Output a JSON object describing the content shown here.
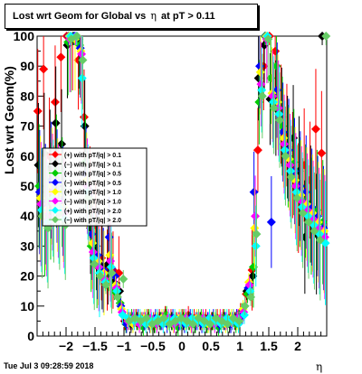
{
  "chart_data": {
    "type": "scatter",
    "title": "Lost wrt Geom for Global vs   η at pT > 0.11",
    "title_parts": [
      "Lost wrt Geom for Global vs",
      "η",
      "at pT > 0.11"
    ],
    "xlabel": "η",
    "ylabel": "Lost wrt Geom(%)",
    "xlim": [
      -2.5,
      2.5
    ],
    "ylim": [
      0,
      100
    ],
    "xticks": [
      -2,
      -1.5,
      -1,
      -0.5,
      0,
      0.5,
      1,
      1.5,
      2
    ],
    "xtick_labels": [
      "−2",
      "−1.5",
      "−1",
      "−0.5",
      "0",
      "0.5",
      "1",
      "1.5",
      "2"
    ],
    "yticks": [
      0,
      10,
      20,
      30,
      40,
      50,
      60,
      70,
      80,
      90,
      100
    ],
    "ytick_labels": [
      "0",
      "10",
      "20",
      "30",
      "40",
      "50",
      "60",
      "70",
      "80",
      "90",
      "100"
    ],
    "legend_position": "center-left",
    "series": [
      {
        "name": "(+) with pT/|q| > 0.1",
        "color": "#ff0000",
        "x": [
          -2.45,
          -2.35,
          -2.25,
          -2.15,
          -2.05,
          -1.95,
          -1.85,
          -1.75,
          -1.65,
          -1.55,
          -1.45,
          -1.35,
          -1.25,
          -1.15,
          -1.05,
          -0.95,
          -0.85,
          -0.75,
          -0.65,
          -0.55,
          -0.45,
          -0.35,
          -0.25,
          -0.15,
          -0.05,
          0.05,
          0.15,
          0.25,
          0.35,
          0.45,
          0.55,
          0.65,
          0.75,
          0.85,
          0.95,
          1.05,
          1.15,
          1.25,
          1.35,
          1.45,
          1.55,
          1.65,
          1.75,
          1.85,
          1.95,
          2.05,
          2.15,
          2.25,
          2.35,
          2.45
        ],
        "y": [
          75,
          89,
          60,
          78,
          93,
          100,
          99,
          92,
          73,
          48,
          37,
          26,
          22,
          22,
          21,
          5,
          5,
          6,
          5,
          6,
          5,
          6,
          7,
          6,
          5,
          6,
          7,
          6,
          5,
          6,
          5,
          6,
          6,
          6,
          5,
          8,
          14,
          22,
          62,
          90,
          100,
          95,
          74,
          67,
          57,
          46,
          57,
          52,
          69,
          61
        ]
      },
      {
        "name": "(−) with pT/|q| > 0.1",
        "color": "#000000",
        "x": [
          -2.45,
          -2.35,
          -2.25,
          -2.15,
          -2.05,
          -1.95,
          -1.85,
          -1.75,
          -1.65,
          -1.55,
          -1.45,
          -1.35,
          -1.25,
          -1.15,
          -1.05,
          -0.95,
          -0.85,
          -0.75,
          -0.65,
          -0.55,
          -0.45,
          -0.35,
          -0.25,
          -0.15,
          -0.05,
          0.05,
          0.15,
          0.25,
          0.35,
          0.45,
          0.55,
          0.65,
          0.75,
          0.85,
          0.95,
          1.05,
          1.15,
          1.25,
          1.35,
          1.45,
          1.55,
          1.65,
          1.75,
          1.85,
          1.95,
          2.05,
          2.15,
          2.25,
          2.35,
          2.45
        ],
        "y": [
          57,
          61,
          56,
          71,
          64,
          97,
          100,
          99,
          70,
          36,
          30,
          23,
          24,
          18,
          15,
          5,
          4,
          5,
          4,
          5,
          4,
          5,
          6,
          5,
          4,
          5,
          5,
          4,
          5,
          4,
          5,
          4,
          5,
          4,
          5,
          7,
          15,
          20,
          86,
          97,
          79,
          76,
          73,
          63,
          66,
          55,
          33,
          44,
          34,
          100
        ]
      },
      {
        "name": "(+) with pT/|q| > 0.5",
        "color": "#00cc00",
        "x": [
          -2.45,
          -2.35,
          -2.25,
          -2.15,
          -2.05,
          -1.95,
          -1.85,
          -1.75,
          -1.65,
          -1.55,
          -1.45,
          -1.35,
          -1.25,
          -1.15,
          -1.05,
          -0.95,
          -0.85,
          -0.75,
          -0.65,
          -0.55,
          -0.45,
          -0.35,
          -0.25,
          -0.15,
          -0.05,
          0.05,
          0.15,
          0.25,
          0.35,
          0.45,
          0.55,
          0.65,
          0.75,
          0.85,
          0.95,
          1.05,
          1.15,
          1.25,
          1.35,
          1.45,
          1.55,
          1.65,
          1.75,
          1.85,
          1.95,
          2.05,
          2.15,
          2.25,
          2.35,
          2.45
        ],
        "y": [
          50,
          40,
          45,
          55,
          48,
          98,
          100,
          97,
          58,
          30,
          24,
          20,
          18,
          15,
          11,
          4,
          6,
          5,
          3,
          6,
          4,
          5,
          7,
          5,
          3,
          6,
          5,
          4,
          6,
          4,
          5,
          3,
          6,
          5,
          4,
          8,
          14,
          23,
          78,
          100,
          86,
          90,
          70,
          60,
          58,
          48,
          45,
          40,
          42,
          38
        ]
      },
      {
        "name": "(−) with pT/|q| > 0.5",
        "color": "#0000ff",
        "x": [
          -2.45,
          -2.35,
          -2.25,
          -2.15,
          -2.05,
          -1.95,
          -1.85,
          -1.75,
          -1.65,
          -1.55,
          -1.45,
          -1.35,
          -1.25,
          -1.15,
          -1.05,
          -0.95,
          -0.85,
          -0.75,
          -0.65,
          -0.55,
          -0.45,
          -0.35,
          -0.25,
          -0.15,
          -0.05,
          0.05,
          0.15,
          0.25,
          0.35,
          0.45,
          0.55,
          0.65,
          0.75,
          0.85,
          0.95,
          1.05,
          1.15,
          1.25,
          1.35,
          1.45,
          1.55,
          1.65,
          1.75,
          1.85,
          1.95,
          2.05,
          2.15,
          2.25,
          2.35,
          2.45
        ],
        "y": [
          48,
          44,
          52,
          50,
          45,
          100,
          100,
          96,
          54,
          34,
          27,
          22,
          33,
          20,
          10,
          4,
          5,
          6,
          5,
          4,
          6,
          5,
          4,
          6,
          5,
          4,
          6,
          5,
          4,
          5,
          6,
          4,
          5,
          4,
          6,
          7,
          16,
          48,
          90,
          100,
          38,
          82,
          68,
          62,
          55,
          50,
          48,
          43,
          40,
          36
        ]
      },
      {
        "name": "(+) with pT/|q| > 1.0",
        "color": "#ffff00",
        "x": [
          -2.45,
          -2.35,
          -2.25,
          -2.15,
          -2.05,
          -1.95,
          -1.85,
          -1.75,
          -1.65,
          -1.55,
          -1.45,
          -1.35,
          -1.25,
          -1.15,
          -1.05,
          -0.95,
          -0.85,
          -0.75,
          -0.65,
          -0.55,
          -0.45,
          -0.35,
          -0.25,
          -0.15,
          -0.05,
          0.05,
          0.15,
          0.25,
          0.35,
          0.45,
          0.55,
          0.65,
          0.75,
          0.85,
          0.95,
          1.05,
          1.15,
          1.25,
          1.35,
          1.45,
          1.55,
          1.65,
          1.75,
          1.85,
          1.95,
          2.05,
          2.15,
          2.25,
          2.35,
          2.45
        ],
        "y": [
          46,
          42,
          50,
          47,
          43,
          100,
          99,
          95,
          52,
          31,
          25,
          21,
          27,
          17,
          9,
          6,
          4,
          5,
          6,
          4,
          5,
          6,
          5,
          4,
          6,
          5,
          4,
          6,
          5,
          4,
          5,
          6,
          4,
          6,
          5,
          9,
          18,
          36,
          88,
          100,
          81,
          78,
          66,
          59,
          52,
          47,
          44,
          41,
          38,
          35
        ]
      },
      {
        "name": "(−) with pT/|q| > 1.0",
        "color": "#ff00ff",
        "x": [
          -2.45,
          -2.35,
          -2.25,
          -2.15,
          -2.05,
          -1.95,
          -1.85,
          -1.75,
          -1.65,
          -1.55,
          -1.45,
          -1.35,
          -1.25,
          -1.15,
          -1.05,
          -0.95,
          -0.85,
          -0.75,
          -0.65,
          -0.55,
          -0.45,
          -0.35,
          -0.25,
          -0.15,
          -0.05,
          0.05,
          0.15,
          0.25,
          0.35,
          0.45,
          0.55,
          0.65,
          0.75,
          0.85,
          0.95,
          1.05,
          1.15,
          1.25,
          1.35,
          1.45,
          1.55,
          1.65,
          1.75,
          1.85,
          1.95,
          2.05,
          2.15,
          2.25,
          2.35,
          2.45
        ],
        "y": [
          44,
          40,
          48,
          45,
          41,
          99,
          100,
          94,
          50,
          28,
          23,
          19,
          25,
          16,
          8,
          5,
          6,
          4,
          5,
          6,
          4,
          5,
          6,
          4,
          5,
          6,
          4,
          5,
          6,
          5,
          4,
          6,
          5,
          5,
          6,
          8,
          17,
          40,
          84,
          99,
          80,
          76,
          64,
          57,
          50,
          45,
          42,
          39,
          36,
          33
        ]
      },
      {
        "name": "(+) with pT/|q| > 2.0",
        "color": "#00ffff",
        "x": [
          -2.45,
          -2.35,
          -2.25,
          -2.15,
          -2.05,
          -1.95,
          -1.85,
          -1.75,
          -1.65,
          -1.55,
          -1.45,
          -1.35,
          -1.25,
          -1.15,
          -1.05,
          -0.95,
          -0.85,
          -0.75,
          -0.65,
          -0.55,
          -0.45,
          -0.35,
          -0.25,
          -0.15,
          -0.05,
          0.05,
          0.15,
          0.25,
          0.35,
          0.45,
          0.55,
          0.65,
          0.75,
          0.85,
          0.95,
          1.05,
          1.15,
          1.25,
          1.35,
          1.45,
          1.55,
          1.65,
          1.75,
          1.85,
          1.95,
          2.05,
          2.15,
          2.25,
          2.35,
          2.45
        ],
        "y": [
          42,
          38,
          46,
          43,
          39,
          100,
          100,
          86,
          48,
          26,
          21,
          18,
          23,
          15,
          7,
          6,
          5,
          6,
          4,
          5,
          6,
          4,
          5,
          6,
          5,
          4,
          6,
          5,
          4,
          6,
          5,
          4,
          6,
          5,
          4,
          7,
          15,
          30,
          82,
          100,
          78,
          74,
          62,
          55,
          48,
          43,
          40,
          37,
          34,
          31
        ]
      },
      {
        "name": "(−) with pT/|q| > 2.0",
        "color": "#66cc66",
        "x": [
          -2.45,
          -2.35,
          -2.25,
          -2.15,
          -2.05,
          -1.95,
          -1.85,
          -1.75,
          -1.65,
          -1.55,
          -1.45,
          -1.35,
          -1.25,
          -1.15,
          -1.05,
          -0.95,
          -0.85,
          -0.75,
          -0.65,
          -0.55,
          -0.45,
          -0.35,
          -0.25,
          -0.15,
          -0.05,
          0.05,
          0.15,
          0.25,
          0.35,
          0.45,
          0.55,
          0.65,
          0.75,
          0.85,
          0.95,
          1.05,
          1.15,
          1.25,
          1.35,
          1.45,
          1.55,
          1.65,
          1.75,
          1.85,
          1.95,
          2.05,
          2.15,
          2.25,
          2.35,
          2.45
        ],
        "y": [
          40,
          36,
          44,
          41,
          37,
          99,
          100,
          92,
          46,
          24,
          20,
          17,
          21,
          13,
          19,
          5,
          6,
          5,
          6,
          4,
          5,
          6,
          4,
          5,
          6,
          5,
          4,
          6,
          5,
          4,
          6,
          5,
          4,
          6,
          5,
          10,
          13,
          34,
          80,
          99,
          76,
          72,
          60,
          53,
          46,
          41,
          38,
          35,
          32,
          100
        ]
      }
    ]
  },
  "footer": {
    "date": "Tue Jul  3 09:28:59 2018"
  }
}
